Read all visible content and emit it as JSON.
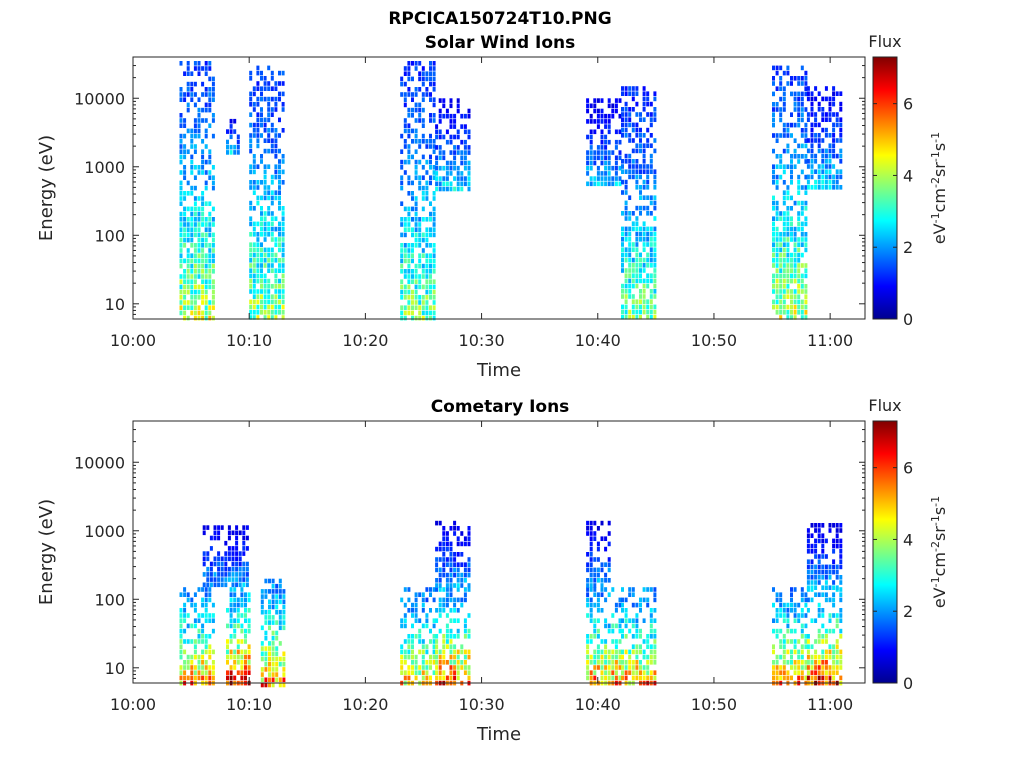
{
  "figure": {
    "title": "RPCICA150724T10.PNG"
  },
  "colors": {
    "colormap": "jet",
    "axis": "#262626",
    "background": "#ffffff"
  },
  "chart_data": [
    {
      "type": "heatmap",
      "title": "Solar Wind Ions",
      "xlabel": "Time",
      "ylabel": "Energy (eV)",
      "x_range": [
        "10:00",
        "11:03"
      ],
      "x_ticks": [
        "10:00",
        "10:10",
        "10:20",
        "10:30",
        "10:40",
        "10:50",
        "11:00"
      ],
      "y_scale": "log",
      "y_range": [
        6,
        40000
      ],
      "y_ticks": [
        10,
        100,
        1000,
        10000
      ],
      "y_tick_labels": [
        "10",
        "100",
        "1000",
        "10000"
      ],
      "colorbar": {
        "title": "Flux",
        "label": "eV-1cm-2sr-1s-1",
        "range": [
          0,
          7.3
        ],
        "ticks": [
          0,
          2,
          4,
          6
        ],
        "tick_labels": [
          "0",
          "2",
          "4",
          "6"
        ]
      },
      "blocks": [
        {
          "start": "10:04",
          "end": "10:07",
          "emin": 6,
          "emax": 35000,
          "peak": 4.5
        },
        {
          "start": "10:08",
          "end": "10:09",
          "emin": 1500,
          "emax": 5000,
          "peak": 3.0
        },
        {
          "start": "10:10",
          "end": "10:13",
          "emin": 6,
          "emax": 30000,
          "peak": 4.2
        },
        {
          "start": "10:23",
          "end": "10:26",
          "emin": 6,
          "emax": 35000,
          "peak": 4.0
        },
        {
          "start": "10:26",
          "end": "10:29",
          "emin": 500,
          "emax": 10000,
          "peak": 2.8
        },
        {
          "start": "10:39",
          "end": "10:42",
          "emin": 600,
          "emax": 10000,
          "peak": 2.5
        },
        {
          "start": "10:42",
          "end": "10:45",
          "emin": 6,
          "emax": 15000,
          "peak": 4.0
        },
        {
          "start": "10:55",
          "end": "10:58",
          "emin": 6,
          "emax": 30000,
          "peak": 4.5
        },
        {
          "start": "10:58",
          "end": "11:01",
          "emin": 500,
          "emax": 15000,
          "peak": 2.8
        }
      ]
    },
    {
      "type": "heatmap",
      "title": "Cometary Ions",
      "xlabel": "Time",
      "ylabel": "Energy (eV)",
      "x_range": [
        "10:00",
        "11:03"
      ],
      "x_ticks": [
        "10:00",
        "10:10",
        "10:20",
        "10:30",
        "10:40",
        "10:50",
        "11:00"
      ],
      "y_scale": "log",
      "y_range": [
        6,
        40000
      ],
      "y_ticks": [
        10,
        100,
        1000,
        10000
      ],
      "y_tick_labels": [
        "10",
        "100",
        "1000",
        "10000"
      ],
      "colorbar": {
        "title": "Flux",
        "label": "eV-1cm-2sr-1s-1",
        "range": [
          0,
          7.3
        ],
        "ticks": [
          0,
          2,
          4,
          6
        ],
        "tick_labels": [
          "0",
          "2",
          "4",
          "6"
        ]
      },
      "blocks": [
        {
          "start": "10:04",
          "end": "10:07",
          "emin": 6,
          "emax": 150,
          "peak": 6.0
        },
        {
          "start": "10:06",
          "end": "10:10",
          "emin": 150,
          "emax": 1200,
          "peak": 2.5
        },
        {
          "start": "10:08",
          "end": "10:10",
          "emin": 6,
          "emax": 150,
          "peak": 7.0
        },
        {
          "start": "10:11",
          "end": "10:13",
          "emin": 6,
          "emax": 200,
          "peak": 6.0
        },
        {
          "start": "10:23",
          "end": "10:26",
          "emin": 6,
          "emax": 150,
          "peak": 5.5
        },
        {
          "start": "10:26",
          "end": "10:29",
          "emin": 6,
          "emax": 150,
          "peak": 6.5
        },
        {
          "start": "10:26",
          "end": "10:29",
          "emin": 150,
          "emax": 1400,
          "peak": 2.5
        },
        {
          "start": "10:39",
          "end": "10:42",
          "emin": 6,
          "emax": 150,
          "peak": 6.0
        },
        {
          "start": "10:39",
          "end": "10:41",
          "emin": 150,
          "emax": 1400,
          "peak": 2.5
        },
        {
          "start": "10:42",
          "end": "10:45",
          "emin": 6,
          "emax": 150,
          "peak": 6.0
        },
        {
          "start": "10:55",
          "end": "10:58",
          "emin": 6,
          "emax": 150,
          "peak": 6.0
        },
        {
          "start": "10:58",
          "end": "11:01",
          "emin": 6,
          "emax": 150,
          "peak": 6.8
        },
        {
          "start": "10:58",
          "end": "11:01",
          "emin": 150,
          "emax": 1300,
          "peak": 2.5
        }
      ]
    }
  ]
}
